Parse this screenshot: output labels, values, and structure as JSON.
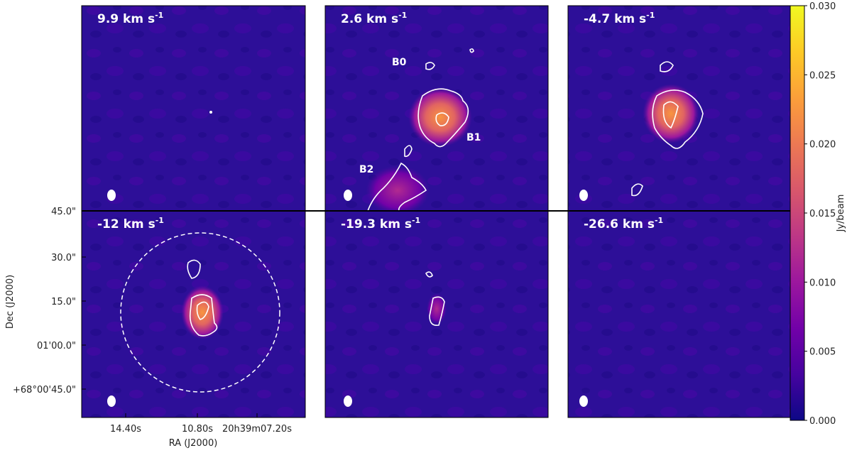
{
  "chart_data": {
    "type": "channel-map",
    "panels": [
      {
        "label": "9.9 km s",
        "exponent": "-1"
      },
      {
        "label": "2.6 km s",
        "exponent": "-1"
      },
      {
        "label": "-4.7 km s",
        "exponent": "-1"
      },
      {
        "label": "-12 km s",
        "exponent": "-1"
      },
      {
        "label": "-19.3 km s",
        "exponent": "-1"
      },
      {
        "label": "-26.6 km s",
        "exponent": "-1"
      }
    ],
    "annotations": [
      "B0",
      "B1",
      "B2"
    ],
    "xlabel": "RA (J2000)",
    "ylabel": "Dec (J2000)",
    "ra_tick_labels": [
      "14.40s",
      "10.80s",
      "20h39m07.20s"
    ],
    "dec_tick_labels": [
      "45.0\"",
      "30.0\"",
      "15.0\"",
      "01'00.0\"",
      "+68°00'45.0\""
    ],
    "colorbar": {
      "label": "Jy/beam",
      "colormap": "plasma",
      "lim": [
        0,
        0.03
      ],
      "ticks": [
        {
          "value": 0,
          "label": "0.000"
        },
        {
          "value": 0.005,
          "label": "0.005"
        },
        {
          "value": 0.01,
          "label": "0.010"
        },
        {
          "value": 0.015,
          "label": "0.015"
        },
        {
          "value": 0.02,
          "label": "0.020"
        },
        {
          "value": 0.025,
          "label": "0.025"
        },
        {
          "value": 0.03,
          "label": "0.030"
        }
      ]
    }
  }
}
